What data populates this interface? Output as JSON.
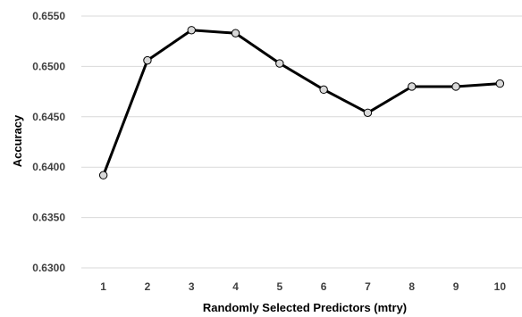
{
  "chart_data": {
    "type": "line",
    "xlabel": "Randomly Selected Predictors (mtry)",
    "ylabel": "Accuracy",
    "ylim": [
      0.63,
      0.655
    ],
    "y_ticks": [
      "0.6300",
      "0.6350",
      "0.6400",
      "0.6450",
      "0.6500",
      "0.6550"
    ],
    "y_tick_values": [
      0.63,
      0.635,
      0.64,
      0.645,
      0.65,
      0.655
    ],
    "categories": [
      "1",
      "2",
      "3",
      "4",
      "5",
      "6",
      "7",
      "8",
      "9",
      "10"
    ],
    "series": [
      {
        "values": [
          0.6392,
          0.6506,
          0.6536,
          0.6533,
          0.6503,
          0.6477,
          0.6454,
          0.648,
          0.648,
          0.6483
        ]
      }
    ],
    "grid": "horizontal",
    "legend": "none",
    "colors": {
      "line": "#000000",
      "marker_fill": "#d9d9d9",
      "grid": "#d9d9d9"
    }
  }
}
